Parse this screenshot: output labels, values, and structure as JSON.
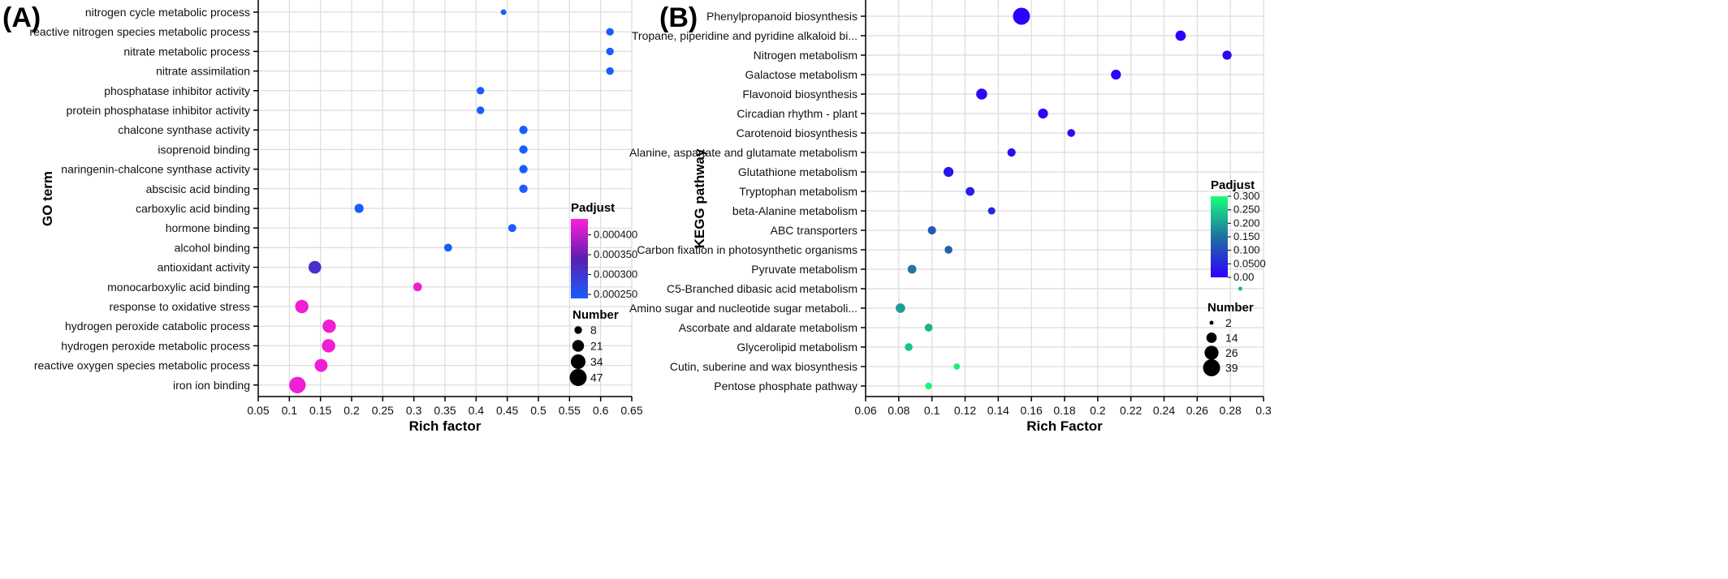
{
  "chart_data": [
    {
      "type": "scatter",
      "panel_label": "(A)",
      "xlabel": "Rich factor",
      "ylabel": "GO term",
      "xlim": [
        0.05,
        0.65
      ],
      "xticks": [
        "0.05",
        "0.1",
        "0.15",
        "0.2",
        "0.25",
        "0.3",
        "0.35",
        "0.4",
        "0.45",
        "0.5",
        "0.55",
        "0.6",
        "0.65"
      ],
      "grid": true,
      "legend_placement": "right",
      "color_legend": {
        "title": "Padjust",
        "range": [
          0.00024,
          0.00044
        ],
        "ticks": [
          "0.000400",
          "0.000350",
          "0.000300",
          "0.000250"
        ],
        "colors": [
          "#1a5cff",
          "#5a1fb0",
          "#ff1fd8"
        ]
      },
      "size_legend": {
        "title": "Number",
        "labels": [
          "8",
          "21",
          "34",
          "47"
        ],
        "values": [
          8,
          21,
          34,
          47
        ]
      },
      "categories": [
        "nitrogen cycle metabolic process",
        "reactive nitrogen species metabolic process",
        "nitrate metabolic process",
        "nitrate assimilation",
        "phosphatase inhibitor activity",
        "protein phosphatase inhibitor activity",
        "chalcone synthase activity",
        "isoprenoid binding",
        "naringenin-chalcone synthase activity",
        "abscisic acid binding",
        "carboxylic acid binding",
        "hormone binding",
        "alcohol binding",
        "antioxidant activity",
        "monocarboxylic acid binding",
        "response to oxidative stress",
        "hydrogen peroxide catabolic process",
        "hydrogen peroxide metabolic process",
        "reactive oxygen species metabolic process",
        "iron ion binding"
      ],
      "x": [
        0.444,
        0.615,
        0.615,
        0.615,
        0.407,
        0.407,
        0.476,
        0.476,
        0.476,
        0.476,
        0.212,
        0.458,
        0.355,
        0.141,
        0.306,
        0.12,
        0.164,
        0.163,
        0.151,
        0.113
      ],
      "size": [
        4,
        8,
        8,
        8,
        8,
        8,
        10,
        10,
        10,
        10,
        12,
        9,
        9,
        25,
        11,
        28,
        28,
        28,
        26,
        44
      ],
      "padjust": [
        0.00024,
        0.00024,
        0.00024,
        0.00024,
        0.00024,
        0.00024,
        0.00024,
        0.00024,
        0.00024,
        0.00024,
        0.00024,
        0.00024,
        0.00024,
        0.00031,
        0.00043,
        0.00043,
        0.00043,
        0.00043,
        0.00043,
        0.00043
      ]
    },
    {
      "type": "scatter",
      "panel_label": "(B)",
      "xlabel": "Rich Factor",
      "ylabel": "KEGG pathway",
      "xlim": [
        0.06,
        0.3
      ],
      "xticks": [
        "0.06",
        "0.08",
        "0.1",
        "0.12",
        "0.14",
        "0.16",
        "0.18",
        "0.2",
        "0.22",
        "0.24",
        "0.26",
        "0.28",
        "0.3"
      ],
      "grid": true,
      "legend_placement": "right",
      "color_legend": {
        "title": "Padjust",
        "range": [
          0,
          0.3
        ],
        "ticks": [
          "0.300",
          "0.250",
          "0.200",
          "0.150",
          "0.100",
          "0.0500",
          "0.00"
        ],
        "colors": [
          "#2a00ff",
          "#1f6fa0",
          "#18ff7a"
        ]
      },
      "size_legend": {
        "title": "Number",
        "labels": [
          "2",
          "14",
          "26",
          "39"
        ],
        "values": [
          2,
          14,
          26,
          39
        ]
      },
      "categories": [
        "Phenylpropanoid biosynthesis",
        "Tropane, piperidine and pyridine alkaloid bi...",
        "Nitrogen metabolism",
        "Galactose metabolism",
        "Flavonoid biosynthesis",
        "Circadian rhythm - plant",
        "Carotenoid biosynthesis",
        "Alanine, aspartate and glutamate metabolism",
        "Glutathione metabolism",
        "Tryptophan metabolism",
        "beta-Alanine metabolism",
        "ABC transporters",
        "Carbon fixation in photosynthetic organisms",
        "Pyruvate metabolism",
        "C5-Branched dibasic acid metabolism",
        "Amino sugar and nucleotide sugar metaboli...",
        "Ascorbate and aldarate metabolism",
        "Glycerolipid metabolism",
        "Cutin, suberine and wax biosynthesis",
        "Pentose phosphate pathway"
      ],
      "x": [
        0.154,
        0.25,
        0.278,
        0.211,
        0.13,
        0.167,
        0.184,
        0.148,
        0.11,
        0.123,
        0.136,
        0.1,
        0.11,
        0.088,
        0.286,
        0.081,
        0.098,
        0.086,
        0.115,
        0.098
      ],
      "size": [
        39,
        14,
        11,
        13,
        16,
        13,
        8,
        9,
        13,
        10,
        7,
        9,
        8,
        10,
        2,
        12,
        8,
        8,
        5,
        6
      ],
      "padjust": [
        0.0,
        0.0,
        0.01,
        0.01,
        0.01,
        0.01,
        0.02,
        0.02,
        0.03,
        0.04,
        0.05,
        0.12,
        0.13,
        0.16,
        0.22,
        0.2,
        0.22,
        0.24,
        0.28,
        0.29
      ]
    }
  ]
}
